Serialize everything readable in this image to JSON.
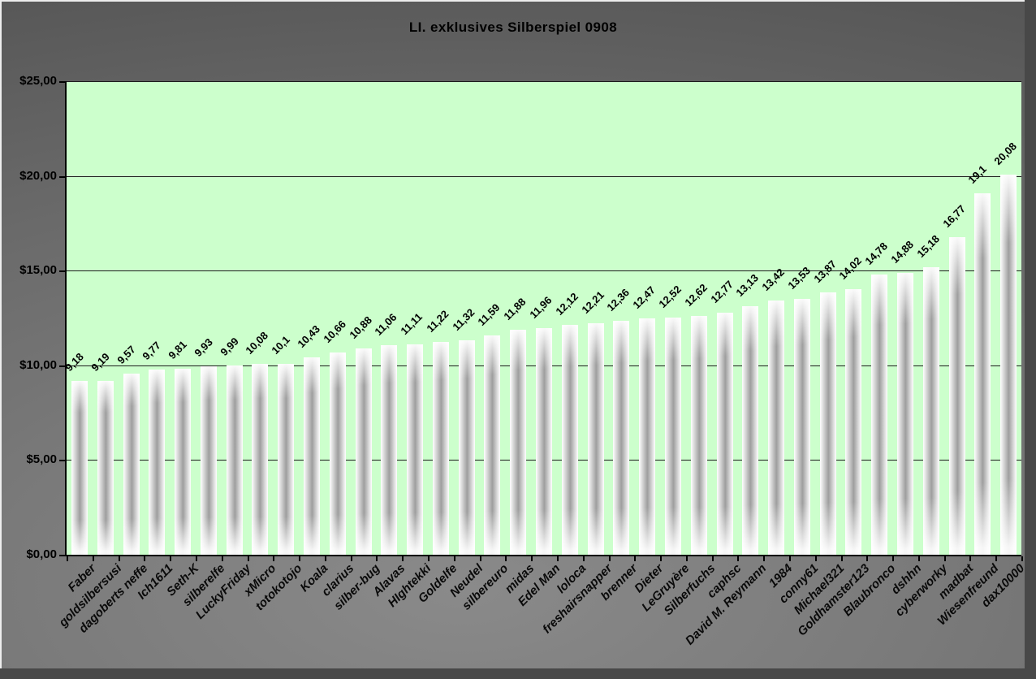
{
  "chart_data": {
    "type": "bar",
    "title": "LI. exklusives Silberspiel 0908",
    "categories": [
      "Faber",
      "goldsilbersusi",
      "dagoberts neffe",
      "Ich1611",
      "Seth-K",
      "silberelfe",
      "LuckyFriday",
      "xMicro",
      "totokotojo",
      "Koala",
      "clarius",
      "silber-bug",
      "Alavas",
      "HIghtekki",
      "Goldelfe",
      "Neudel",
      "silbereuro",
      "midas",
      "Edel Man",
      "loloca",
      "freshairsnapper",
      "brenner",
      "Dieter",
      "LeGruyère",
      "Silberfuchs",
      "caphsc",
      "David M. Reymann",
      "1984",
      "conny61",
      "Michael321",
      "Goldhamster123",
      "Blaubronco",
      "dshhn",
      "cyberworky",
      "madbat",
      "Wiesenfreund",
      "dax10000"
    ],
    "values": [
      9.18,
      9.19,
      9.57,
      9.77,
      9.81,
      9.93,
      9.99,
      10.08,
      10.1,
      10.43,
      10.66,
      10.88,
      11.06,
      11.11,
      11.22,
      11.32,
      11.59,
      11.88,
      11.96,
      12.12,
      12.21,
      12.36,
      12.47,
      12.52,
      12.62,
      12.77,
      13.13,
      13.42,
      13.53,
      13.87,
      14.02,
      14.78,
      14.88,
      15.18,
      16.77,
      19.1,
      20.08
    ],
    "value_labels": [
      "9,18",
      "9,19",
      "9,57",
      "9,77",
      "9,81",
      "9,93",
      "9,99",
      "10,08",
      "10,1",
      "10,43",
      "10,66",
      "10,88",
      "11,06",
      "11,11",
      "11,22",
      "11,32",
      "11,59",
      "11,88",
      "11,96",
      "12,12",
      "12,21",
      "12,36",
      "12,47",
      "12,52",
      "12,62",
      "12,77",
      "13,13",
      "13,42",
      "13,53",
      "13,87",
      "14,02",
      "14,78",
      "14,88",
      "15,18",
      "16,77",
      "19,1",
      "20,08"
    ],
    "y_tick_labels": [
      "$25,00",
      "$20,00",
      "$15,00",
      "$10,00",
      "$5,00",
      "$0,00"
    ],
    "ylim": [
      0,
      25
    ],
    "y_step": 5,
    "grid": "horizontal",
    "legend": "none",
    "xlabel": "",
    "ylabel": "",
    "x_label_rotation_deg": 45,
    "value_label_rotation_deg": 45
  },
  "colors": {
    "plot_bg": "#ccffcc",
    "grid": "#1c1c1c",
    "axis": "#000000",
    "text": "#000000",
    "bar_core": "#9e9e9e",
    "bar_edge": "#ffffff",
    "frame_shadow": "#484848",
    "frame_highlight": "#ededed",
    "bg_dark": "#575757",
    "bg_light": "#8a8a8a"
  }
}
